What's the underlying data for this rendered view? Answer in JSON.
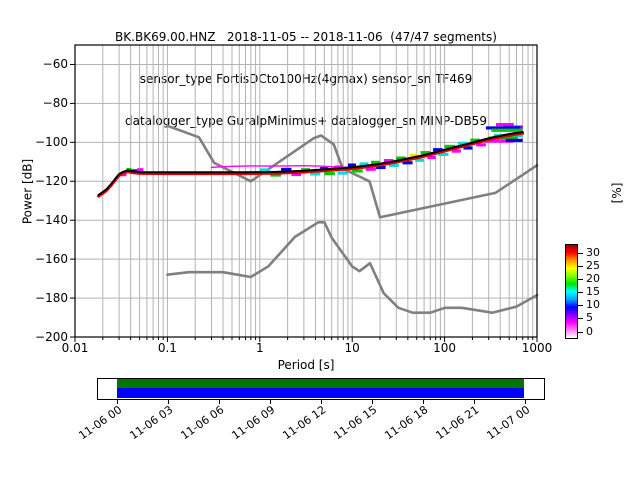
{
  "title": {
    "line1": "BK.BK69.00.HNZ   2018-11-05 -- 2018-11-06  (47/47 segments)",
    "line2": "sensor_type FortisDCto100Hz(4gmax) sensor_sn TF469",
    "line3": "datalogger_type GuralpMinimus+ datalogger_sn MINP-DB59"
  },
  "chart_data": {
    "type": "line",
    "xlabel": "Period [s]",
    "ylabel": "Power [dB]",
    "xscale": "log",
    "xlim": [
      0.01,
      1000
    ],
    "ylim": [
      -200,
      -50
    ],
    "xtick_values": [
      0.01,
      0.1,
      1,
      10,
      100,
      1000
    ],
    "xtick_labels": [
      "0.01",
      "0.1",
      "1",
      "10",
      "100",
      "1000"
    ],
    "ytick_values": [
      -200,
      -180,
      -160,
      -140,
      -120,
      -100,
      -80,
      -60
    ],
    "ytick_labels": [
      "−200",
      "−180",
      "−160",
      "−140",
      "−120",
      "−100",
      "−80",
      "−60"
    ],
    "grid": true,
    "grid_color": "#b3b3b3",
    "series": [
      {
        "name": "psd-mode-line",
        "color": "#000000",
        "points": [
          [
            0.018,
            -127.0
          ],
          [
            0.02,
            -125.5
          ],
          [
            0.022,
            -124.0
          ],
          [
            0.024,
            -122.0
          ],
          [
            0.026,
            -120.0
          ],
          [
            0.028,
            -118.0
          ],
          [
            0.03,
            -116.3
          ],
          [
            0.033,
            -115.2
          ],
          [
            0.037,
            -114.4
          ],
          [
            0.042,
            -114.9
          ],
          [
            0.05,
            -115.3
          ],
          [
            0.1,
            -115.4
          ],
          [
            0.3,
            -115.4
          ],
          [
            0.7,
            -115.4
          ],
          [
            1.0,
            -115.3
          ],
          [
            1.5,
            -115.2
          ],
          [
            2.0,
            -115.0
          ],
          [
            3.0,
            -114.6
          ],
          [
            4.0,
            -114.2
          ],
          [
            5.0,
            -113.9
          ],
          [
            7.0,
            -113.4
          ],
          [
            10.0,
            -112.8
          ],
          [
            14.0,
            -112.0
          ],
          [
            20.0,
            -111.0
          ],
          [
            28.0,
            -109.8
          ],
          [
            40.0,
            -108.3
          ],
          [
            55.0,
            -106.9
          ],
          [
            75.0,
            -105.3
          ],
          [
            100.0,
            -103.8
          ],
          [
            130.0,
            -102.4
          ],
          [
            170.0,
            -101.0
          ],
          [
            220.0,
            -99.6
          ],
          [
            280.0,
            -98.3
          ],
          [
            350.0,
            -97.2
          ],
          [
            450.0,
            -96.2
          ],
          [
            550.0,
            -95.4
          ],
          [
            700.0,
            -94.7
          ]
        ]
      },
      {
        "name": "psd-upper-percentile-line",
        "color": "#ff00ff",
        "points": [
          [
            0.3,
            -112.8
          ],
          [
            0.5,
            -112.3
          ],
          [
            0.8,
            -112.1
          ],
          [
            1.2,
            -112.2
          ],
          [
            2.0,
            -112.1
          ],
          [
            3.0,
            -112.0
          ],
          [
            4.5,
            -112.2
          ],
          [
            6.0,
            -112.5
          ],
          [
            8.0,
            -112.8
          ],
          [
            10.0,
            -113.0
          ]
        ]
      },
      {
        "name": "noise-model-high-nhnm",
        "color": "#808080",
        "points": [
          [
            0.1,
            -91.5
          ],
          [
            0.22,
            -97.4
          ],
          [
            0.32,
            -110.5
          ],
          [
            0.8,
            -120.0
          ],
          [
            3.8,
            -98.0
          ],
          [
            4.6,
            -96.5
          ],
          [
            6.3,
            -101.0
          ],
          [
            7.9,
            -113.5
          ],
          [
            15.4,
            -120.0
          ],
          [
            20.0,
            -138.5
          ],
          [
            354.8,
            -126.0
          ],
          [
            1000.0,
            -111.8
          ]
        ]
      },
      {
        "name": "noise-model-low-nlnm",
        "color": "#808080",
        "points": [
          [
            0.1,
            -168.0
          ],
          [
            0.17,
            -166.7
          ],
          [
            0.4,
            -166.7
          ],
          [
            0.8,
            -169.2
          ],
          [
            1.24,
            -163.7
          ],
          [
            2.4,
            -148.6
          ],
          [
            4.3,
            -141.1
          ],
          [
            5.0,
            -141.1
          ],
          [
            6.0,
            -149.0
          ],
          [
            10.0,
            -163.8
          ],
          [
            12.0,
            -166.2
          ],
          [
            15.6,
            -162.1
          ],
          [
            21.9,
            -177.5
          ],
          [
            31.6,
            -185.0
          ],
          [
            45.0,
            -187.5
          ],
          [
            70.0,
            -187.5
          ],
          [
            101.0,
            -185.0
          ],
          [
            154.0,
            -185.0
          ],
          [
            328.0,
            -187.5
          ],
          [
            600.0,
            -184.4
          ],
          [
            1000.0,
            -178.5
          ]
        ]
      }
    ],
    "histogram_segments": [
      [
        0.031,
        0.036,
        -116.6,
        "#ff00ff"
      ],
      [
        0.036,
        0.041,
        -114.0,
        "#00c800"
      ],
      [
        0.041,
        0.047,
        -114.7,
        "#0000ee"
      ],
      [
        0.047,
        0.055,
        -114.1,
        "#ff00ff"
      ],
      [
        1.0,
        1.3,
        -114.2,
        "#00dddd"
      ],
      [
        1.3,
        1.7,
        -116.8,
        "#00c800"
      ],
      [
        1.7,
        2.2,
        -113.9,
        "#0000ee"
      ],
      [
        2.2,
        2.8,
        -116.5,
        "#ff00ff"
      ],
      [
        2.8,
        3.5,
        -114.1,
        "#00c800"
      ],
      [
        3.5,
        4.5,
        -116.2,
        "#00dddd"
      ],
      [
        4.5,
        5.5,
        -113.5,
        "#0000ee"
      ],
      [
        5.0,
        6.5,
        -116.1,
        "#00c800"
      ],
      [
        6.5,
        8.0,
        -112.7,
        "#ff00ff"
      ],
      [
        7.0,
        9.0,
        -115.8,
        "#00dddd"
      ],
      [
        9.0,
        11.0,
        -111.7,
        "#0000ee"
      ],
      [
        10.0,
        13.0,
        -114.7,
        "#00c800"
      ],
      [
        12.0,
        15.0,
        -111.1,
        "#00dddd"
      ],
      [
        14.0,
        18.0,
        -113.8,
        "#ff00ff"
      ],
      [
        16.0,
        20.0,
        -110.3,
        "#00c800"
      ],
      [
        18.0,
        23.0,
        -112.9,
        "#0000ee"
      ],
      [
        22.0,
        28.0,
        -109.4,
        "#ff00ff"
      ],
      [
        25.0,
        32.0,
        -111.8,
        "#00dddd"
      ],
      [
        30.0,
        38.0,
        -108.1,
        "#00c800"
      ],
      [
        35.0,
        45.0,
        -110.5,
        "#0000ee"
      ],
      [
        42.0,
        52.0,
        -106.7,
        "#ffe000"
      ],
      [
        48.0,
        60.0,
        -109.2,
        "#00dddd"
      ],
      [
        55.0,
        70.0,
        -105.3,
        "#00c800"
      ],
      [
        65.0,
        80.0,
        -107.8,
        "#ff00ff"
      ],
      [
        75.0,
        95.0,
        -103.8,
        "#0000ee"
      ],
      [
        85.0,
        110.0,
        -106.2,
        "#00dddd"
      ],
      [
        100.0,
        130.0,
        -102.1,
        "#00c800"
      ],
      [
        120.0,
        150.0,
        -104.5,
        "#ff00ff"
      ],
      [
        140.0,
        180.0,
        -100.5,
        "#00dddd"
      ],
      [
        160.0,
        200.0,
        -102.9,
        "#0000ee"
      ],
      [
        190.0,
        240.0,
        -98.9,
        "#00c800"
      ],
      [
        220.0,
        280.0,
        -101.3,
        "#ff00ff"
      ],
      [
        360.0,
        560.0,
        -90.9,
        "#ff00ff"
      ],
      [
        430.0,
        700.0,
        -92.2,
        "#7f00ff"
      ],
      [
        280.0,
        650.0,
        -92.6,
        "#0000ee"
      ],
      [
        320.0,
        700.0,
        -93.8,
        "#00c800"
      ],
      [
        340.0,
        700.0,
        -96.6,
        "#00dddd"
      ],
      [
        300.0,
        620.0,
        -97.8,
        "#00c800"
      ],
      [
        270.0,
        560.0,
        -99.4,
        "#ff00ff"
      ],
      [
        460.0,
        700.0,
        -99.0,
        "#0000ee"
      ]
    ],
    "mode_line_underlay_color": "#dd0000",
    "colorbar": {
      "label": "[%]",
      "tick_values": [
        30,
        25,
        20,
        15,
        10,
        5,
        0
      ],
      "tick_labels": [
        "30",
        "25",
        "20",
        "15",
        "10",
        "5",
        "0"
      ],
      "gradient_bottom_to_top": [
        "#ffffff",
        "#ff80ff",
        "#ff00ff",
        "#8000ff",
        "#0000ff",
        "#00aaff",
        "#00ffff",
        "#00e600",
        "#80ff00",
        "#ffff00",
        "#ff9900",
        "#ff0000",
        "#990000"
      ]
    }
  },
  "timeline": {
    "tick_labels": [
      "11-06 00",
      "11-06 03",
      "11-06 06",
      "11-06 09",
      "11-06 12",
      "11-06 15",
      "11-06 18",
      "11-06 21",
      "11-07 00"
    ],
    "coverage_top_color": "#007800",
    "coverage_bottom_color": "#0000ff"
  }
}
